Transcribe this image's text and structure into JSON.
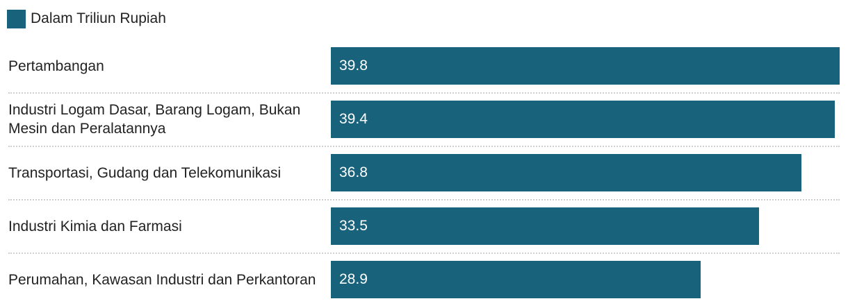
{
  "legend": {
    "label": "Dalam Triliun Rupiah",
    "color": "#18627c"
  },
  "chart_data": {
    "type": "bar",
    "orientation": "horizontal",
    "categories": [
      "Pertambangan",
      "Industri Logam Dasar, Barang Logam, Bukan Mesin dan Peralatannya",
      "Transportasi, Gudang dan Telekomunikasi",
      "Industri Kimia dan Farmasi",
      "Perumahan, Kawasan Industri dan Perkantoran"
    ],
    "series": [
      {
        "name": "Dalam Triliun Rupiah",
        "values": [
          39.8,
          39.4,
          36.8,
          33.5,
          28.9
        ],
        "color": "#18627c"
      }
    ],
    "value_labels": [
      "39.8",
      "39.4",
      "36.8",
      "33.5",
      "28.9"
    ],
    "xlim": [
      0,
      39.8
    ],
    "grid": false,
    "legend_position": "top-left"
  }
}
